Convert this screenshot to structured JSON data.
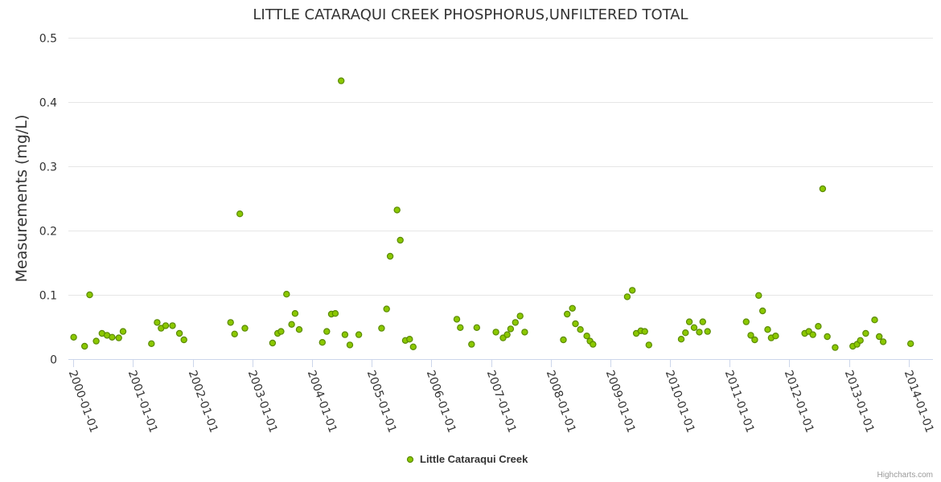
{
  "chart_data": {
    "type": "scatter",
    "title": "LITTLE CATARAQUI CREEK PHOSPHORUS,UNFILTERED TOTAL",
    "ylabel": "Measurements (mg/L)",
    "xlabel": "",
    "ylim": [
      0,
      0.5
    ],
    "y_ticks": [
      "0",
      "0.1",
      "0.2",
      "0.3",
      "0.4",
      "0.5"
    ],
    "x_ticks": [
      "2000-01-01",
      "2001-01-01",
      "2002-01-01",
      "2003-01-01",
      "2004-01-01",
      "2005-01-01",
      "2006-01-01",
      "2007-01-01",
      "2008-01-01",
      "2009-01-01",
      "2010-01-01",
      "2011-01-01",
      "2012-01-01",
      "2013-01-01",
      "2014-01-01"
    ],
    "grid": true,
    "legend_position": "bottom-center",
    "credits": "Highcharts.com",
    "colors": {
      "marker_fill": "#8bc800",
      "marker_stroke": "#5a8a00",
      "grid": "#e6e6e6",
      "axis": "#ccd6eb"
    },
    "series": [
      {
        "name": "Little Cataraqui Creek",
        "points": [
          [
            "2000-01-04",
            0.034
          ],
          [
            "2000-03-11",
            0.02
          ],
          [
            "2000-04-11",
            0.1
          ],
          [
            "2000-05-21",
            0.028
          ],
          [
            "2000-06-25",
            0.04
          ],
          [
            "2000-07-26",
            0.037
          ],
          [
            "2000-08-26",
            0.034
          ],
          [
            "2000-10-06",
            0.033
          ],
          [
            "2000-11-01",
            0.043
          ],
          [
            "2001-04-24",
            0.024
          ],
          [
            "2001-05-29",
            0.057
          ],
          [
            "2001-06-22",
            0.048
          ],
          [
            "2001-07-20",
            0.052
          ],
          [
            "2001-08-31",
            0.052
          ],
          [
            "2001-10-12",
            0.04
          ],
          [
            "2001-11-09",
            0.03
          ],
          [
            "2002-08-21",
            0.057
          ],
          [
            "2002-09-15",
            0.039
          ],
          [
            "2002-10-17",
            0.226
          ],
          [
            "2002-11-17",
            0.048
          ],
          [
            "2003-05-05",
            0.025
          ],
          [
            "2003-06-05",
            0.04
          ],
          [
            "2003-06-26",
            0.043
          ],
          [
            "2003-07-30",
            0.101
          ],
          [
            "2003-08-30",
            0.054
          ],
          [
            "2003-09-20",
            0.071
          ],
          [
            "2003-10-15",
            0.046
          ],
          [
            "2004-03-05",
            0.026
          ],
          [
            "2004-04-01",
            0.043
          ],
          [
            "2004-04-29",
            0.07
          ],
          [
            "2004-05-23",
            0.071
          ],
          [
            "2004-06-28",
            0.433
          ],
          [
            "2004-07-21",
            0.038
          ],
          [
            "2004-08-20",
            0.022
          ],
          [
            "2004-10-14",
            0.038
          ],
          [
            "2005-03-02",
            0.048
          ],
          [
            "2005-04-02",
            0.078
          ],
          [
            "2005-04-24",
            0.16
          ],
          [
            "2005-06-05",
            0.232
          ],
          [
            "2005-06-25",
            0.185
          ],
          [
            "2005-07-26",
            0.029
          ],
          [
            "2005-08-21",
            0.031
          ],
          [
            "2005-09-12",
            0.019
          ],
          [
            "2006-06-06",
            0.062
          ],
          [
            "2006-06-27",
            0.049
          ],
          [
            "2006-09-04",
            0.023
          ],
          [
            "2006-10-06",
            0.049
          ],
          [
            "2007-01-31",
            0.042
          ],
          [
            "2007-03-16",
            0.033
          ],
          [
            "2007-04-10",
            0.038
          ],
          [
            "2007-05-01",
            0.047
          ],
          [
            "2007-05-30",
            0.057
          ],
          [
            "2007-06-28",
            0.067
          ],
          [
            "2007-07-26",
            0.042
          ],
          [
            "2008-03-19",
            0.03
          ],
          [
            "2008-04-11",
            0.07
          ],
          [
            "2008-05-13",
            0.079
          ],
          [
            "2008-06-01",
            0.055
          ],
          [
            "2008-07-01",
            0.046
          ],
          [
            "2008-08-09",
            0.036
          ],
          [
            "2008-08-29",
            0.028
          ],
          [
            "2008-09-16",
            0.023
          ],
          [
            "2009-04-14",
            0.097
          ],
          [
            "2009-05-15",
            0.107
          ],
          [
            "2009-06-08",
            0.04
          ],
          [
            "2009-07-06",
            0.044
          ],
          [
            "2009-07-30",
            0.043
          ],
          [
            "2009-08-24",
            0.022
          ],
          [
            "2010-03-10",
            0.031
          ],
          [
            "2010-04-05",
            0.041
          ],
          [
            "2010-04-29",
            0.058
          ],
          [
            "2010-05-28",
            0.049
          ],
          [
            "2010-06-29",
            0.042
          ],
          [
            "2010-07-20",
            0.058
          ],
          [
            "2010-08-18",
            0.043
          ],
          [
            "2011-04-12",
            0.058
          ],
          [
            "2011-05-10",
            0.037
          ],
          [
            "2011-06-03",
            0.03
          ],
          [
            "2011-06-27",
            0.099
          ],
          [
            "2011-07-21",
            0.075
          ],
          [
            "2011-08-21",
            0.046
          ],
          [
            "2011-09-12",
            0.033
          ],
          [
            "2011-10-09",
            0.036
          ],
          [
            "2012-04-04",
            0.04
          ],
          [
            "2012-04-29",
            0.043
          ],
          [
            "2012-05-24",
            0.038
          ],
          [
            "2012-06-26",
            0.051
          ],
          [
            "2012-07-23",
            0.265
          ],
          [
            "2012-08-20",
            0.035
          ],
          [
            "2012-10-07",
            0.018
          ],
          [
            "2013-01-23",
            0.02
          ],
          [
            "2013-02-18",
            0.023
          ],
          [
            "2013-03-10",
            0.029
          ],
          [
            "2013-04-12",
            0.04
          ],
          [
            "2013-06-06",
            0.061
          ],
          [
            "2013-07-04",
            0.035
          ],
          [
            "2013-07-28",
            0.027
          ],
          [
            "2014-01-12",
            0.024
          ]
        ]
      }
    ]
  }
}
